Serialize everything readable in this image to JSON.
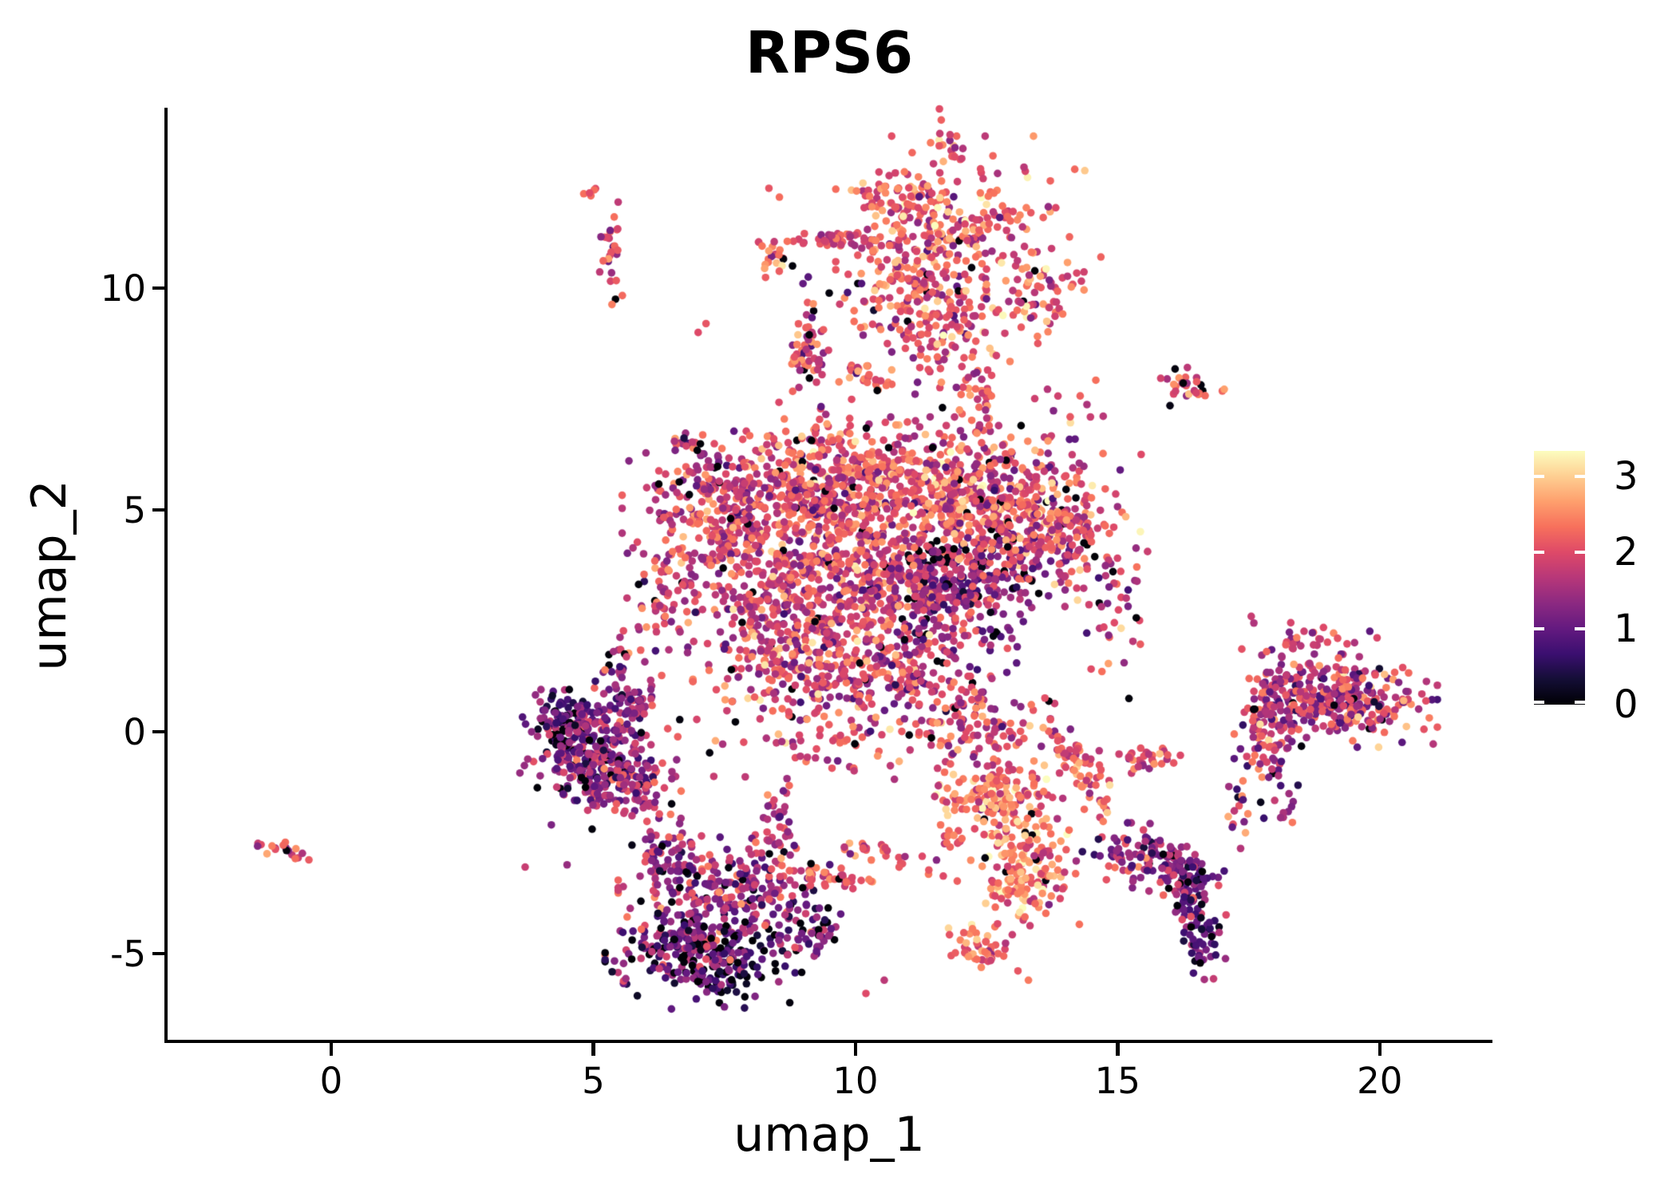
{
  "title": "RPS6",
  "axes": {
    "x_label": "umap_1",
    "y_label": "umap_2",
    "x_ticks": [
      0,
      5,
      10,
      15,
      20
    ],
    "y_ticks": [
      -5,
      0,
      5,
      10
    ]
  },
  "colorbar": {
    "ticks": [
      0,
      1,
      2,
      3
    ],
    "vmin": 0,
    "vmax": 3.33,
    "colormap": "magma",
    "stops": [
      "#000004",
      "#140e36",
      "#3b0f70",
      "#641a80",
      "#8c2981",
      "#b73779",
      "#de4968",
      "#f7705c",
      "#fe9f6d",
      "#fecf92",
      "#fcfdbf"
    ]
  },
  "chart_data": {
    "type": "scatter",
    "title": "RPS6",
    "xlabel": "umap_1",
    "ylabel": "umap_2",
    "xlim": [
      -3.12,
      22.12
    ],
    "ylim": [
      -6.98,
      14.03
    ],
    "x_ticks": [
      0,
      5,
      10,
      15,
      20
    ],
    "y_ticks": [
      -5,
      0,
      5,
      10
    ],
    "grid": false,
    "legend_position": "right",
    "color_scale": {
      "name": "magma",
      "vmin": 0,
      "vmax": 3.33,
      "label_ticks": [
        0,
        1,
        2,
        3
      ]
    },
    "seed": 42,
    "clusters": [
      {
        "cx": 12.0,
        "cy": 11.3,
        "sx": 0.95,
        "sy": 0.85,
        "rot": 0,
        "n": 260,
        "mean": 2.15,
        "sd": 0.5,
        "p0": 0.02
      },
      {
        "cx": 11.0,
        "cy": 10.05,
        "sx": 0.6,
        "sy": 0.5,
        "rot": 0,
        "n": 110,
        "mean": 2.1,
        "sd": 0.5,
        "p0": 0.02
      },
      {
        "cx": 11.75,
        "cy": 13.35,
        "sx": 0.13,
        "sy": 0.3,
        "rot": 15,
        "n": 16,
        "mean": 2.2,
        "sd": 0.4,
        "p0": 0
      },
      {
        "cx": 10.8,
        "cy": 12.2,
        "sx": 0.35,
        "sy": 0.25,
        "rot": 0,
        "n": 40,
        "mean": 2.2,
        "sd": 0.45,
        "p0": 0.02
      },
      {
        "cx": 9.75,
        "cy": 11.1,
        "sx": 0.42,
        "sy": 0.1,
        "rot": 0,
        "n": 40,
        "mean": 2.0,
        "sd": 0.4,
        "p0": 0
      },
      {
        "cx": 8.45,
        "cy": 10.65,
        "sx": 0.18,
        "sy": 0.18,
        "rot": 0,
        "n": 20,
        "mean": 2.3,
        "sd": 0.5,
        "p0": 0.05
      },
      {
        "cx": 13.55,
        "cy": 9.85,
        "sx": 0.3,
        "sy": 0.5,
        "rot": -25,
        "n": 60,
        "mean": 2.25,
        "sd": 0.5,
        "p0": 0.02
      },
      {
        "cx": 11.6,
        "cy": 9.0,
        "sx": 0.65,
        "sy": 0.45,
        "rot": 0,
        "n": 90,
        "mean": 2.1,
        "sd": 0.5,
        "p0": 0.03
      },
      {
        "cx": 9.05,
        "cy": 8.55,
        "sx": 0.22,
        "sy": 0.45,
        "rot": 0,
        "n": 55,
        "mean": 2.0,
        "sd": 0.5,
        "p0": 0.03
      },
      {
        "cx": 9.25,
        "cy": 6.95,
        "sx": 0.1,
        "sy": 0.3,
        "rot": 0,
        "n": 14,
        "mean": 2.0,
        "sd": 0.4,
        "p0": 0
      },
      {
        "cx": 10.1,
        "cy": 8.05,
        "sx": 0.25,
        "sy": 0.12,
        "rot": -30,
        "n": 20,
        "mean": 2.2,
        "sd": 0.4,
        "p0": 0
      },
      {
        "cx": 12.35,
        "cy": 7.7,
        "sx": 0.13,
        "sy": 0.32,
        "rot": 15,
        "n": 25,
        "mean": 2.0,
        "sd": 0.45,
        "p0": 0.04
      },
      {
        "cx": 11.0,
        "cy": 7.3,
        "sx": 0.75,
        "sy": 0.55,
        "rot": 0,
        "n": 32,
        "mean": 1.9,
        "sd": 0.55,
        "p0": 0.06
      },
      {
        "cx": 14.05,
        "cy": 6.9,
        "sx": 0.5,
        "sy": 0.45,
        "rot": 0,
        "n": 18,
        "mean": 2.0,
        "sd": 0.5,
        "p0": 0.05
      },
      {
        "cx": 16.35,
        "cy": 7.75,
        "sx": 0.32,
        "sy": 0.17,
        "rot": -20,
        "n": 30,
        "mean": 1.9,
        "sd": 0.55,
        "p0": 0.08
      },
      {
        "cx": 5.35,
        "cy": 10.75,
        "sx": 0.1,
        "sy": 0.55,
        "rot": 0,
        "n": 26,
        "mean": 2.0,
        "sd": 0.45,
        "p0": 0.04
      },
      {
        "cx": 4.95,
        "cy": 12.2,
        "sx": 0.07,
        "sy": 0.14,
        "rot": 0,
        "n": 5,
        "mean": 2.0,
        "sd": 0.3,
        "p0": 0
      },
      {
        "cx": 7.05,
        "cy": 6.25,
        "sx": 0.38,
        "sy": 0.1,
        "rot": -40,
        "n": 22,
        "mean": 1.85,
        "sd": 0.5,
        "p0": 0.1
      },
      {
        "cx": 7.3,
        "cy": 4.9,
        "sx": 0.7,
        "sy": 0.75,
        "rot": 0,
        "n": 280,
        "mean": 1.85,
        "sd": 0.5,
        "p0": 0.04
      },
      {
        "cx": 9.2,
        "cy": 5.3,
        "sx": 0.8,
        "sy": 0.7,
        "rot": 0,
        "n": 320,
        "mean": 2.05,
        "sd": 0.5,
        "p0": 0.03
      },
      {
        "cx": 11.2,
        "cy": 5.5,
        "sx": 0.9,
        "sy": 0.7,
        "rot": 0,
        "n": 380,
        "mean": 2.1,
        "sd": 0.5,
        "p0": 0.03
      },
      {
        "cx": 13.0,
        "cy": 4.9,
        "sx": 0.8,
        "sy": 0.8,
        "rot": 0,
        "n": 340,
        "mean": 2.0,
        "sd": 0.55,
        "p0": 0.05
      },
      {
        "cx": 12.0,
        "cy": 3.3,
        "sx": 0.8,
        "sy": 0.7,
        "rot": 0,
        "n": 320,
        "mean": 1.35,
        "sd": 0.5,
        "p0": 0.08
      },
      {
        "cx": 10.3,
        "cy": 3.4,
        "sx": 0.8,
        "sy": 0.7,
        "rot": 0,
        "n": 300,
        "mean": 1.95,
        "sd": 0.5,
        "p0": 0.04
      },
      {
        "cx": 8.4,
        "cy": 3.3,
        "sx": 0.7,
        "sy": 0.8,
        "rot": 0,
        "n": 260,
        "mean": 1.9,
        "sd": 0.5,
        "p0": 0.03
      },
      {
        "cx": 8.9,
        "cy": 1.5,
        "sx": 0.8,
        "sy": 0.7,
        "rot": 0,
        "n": 220,
        "mean": 1.95,
        "sd": 0.5,
        "p0": 0.03
      },
      {
        "cx": 10.9,
        "cy": 1.3,
        "sx": 0.8,
        "sy": 0.6,
        "rot": 0,
        "n": 200,
        "mean": 1.8,
        "sd": 0.55,
        "p0": 0.05
      },
      {
        "cx": 11.35,
        "cy": 4.05,
        "sx": 0.35,
        "sy": 0.1,
        "rot": 0,
        "n": 18,
        "mean": 0.15,
        "sd": 0.25,
        "p0": 0.5
      },
      {
        "cx": 13.9,
        "cy": 4.6,
        "sx": 0.45,
        "sy": 0.6,
        "rot": 0,
        "n": 110,
        "mean": 1.95,
        "sd": 0.5,
        "p0": 0.04
      },
      {
        "cx": 6.4,
        "cy": 3.2,
        "sx": 0.35,
        "sy": 0.6,
        "rot": 0,
        "n": 45,
        "mean": 1.8,
        "sd": 0.5,
        "p0": 0.05
      },
      {
        "cx": 6.2,
        "cy": 2.3,
        "sx": 0.25,
        "sy": 0.45,
        "rot": 0,
        "n": 20,
        "mean": 1.8,
        "sd": 0.5,
        "p0": 0.05
      },
      {
        "cx": 9.8,
        "cy": 0.0,
        "sx": 1.6,
        "sy": 0.55,
        "rot": 0,
        "n": 90,
        "mean": 1.95,
        "sd": 0.5,
        "p0": 0.04
      },
      {
        "cx": 12.3,
        "cy": -0.1,
        "sx": 0.6,
        "sy": 0.45,
        "rot": 0,
        "n": 80,
        "mean": 2.0,
        "sd": 0.5,
        "p0": 0.03
      },
      {
        "cx": 14.8,
        "cy": 3.0,
        "sx": 0.4,
        "sy": 0.9,
        "rot": 0,
        "n": 50,
        "mean": 1.9,
        "sd": 0.55,
        "p0": 0.06
      },
      {
        "cx": 4.85,
        "cy": -0.3,
        "sx": 0.5,
        "sy": 0.5,
        "rot": 0,
        "n": 260,
        "mean": 1.2,
        "sd": 0.5,
        "p0": 0.08
      },
      {
        "cx": 5.55,
        "cy": -1.25,
        "sx": 0.45,
        "sy": 0.4,
        "rot": 0,
        "n": 130,
        "mean": 1.6,
        "sd": 0.5,
        "p0": 0.03
      },
      {
        "cx": 4.35,
        "cy": 0.35,
        "sx": 0.28,
        "sy": 0.3,
        "rot": 0,
        "n": 55,
        "mean": 1.05,
        "sd": 0.45,
        "p0": 0.1
      },
      {
        "cx": 5.7,
        "cy": 0.7,
        "sx": 0.3,
        "sy": 0.35,
        "rot": 0,
        "n": 45,
        "mean": 1.5,
        "sd": 0.5,
        "p0": 0.04
      },
      {
        "cx": 5.45,
        "cy": 1.4,
        "sx": 0.15,
        "sy": 0.3,
        "rot": 0,
        "n": 14,
        "mean": 1.6,
        "sd": 0.45,
        "p0": 0.08
      },
      {
        "cx": -0.85,
        "cy": -2.65,
        "sx": 0.28,
        "sy": 0.1,
        "rot": -25,
        "n": 18,
        "mean": 1.7,
        "sd": 0.5,
        "p0": 0.05
      },
      {
        "cx": 7.1,
        "cy": -5.0,
        "sx": 0.75,
        "sy": 0.5,
        "rot": 0,
        "n": 300,
        "mean": 0.95,
        "sd": 0.6,
        "p0": 0.17
      },
      {
        "cx": 7.6,
        "cy": -3.6,
        "sx": 0.85,
        "sy": 0.5,
        "rot": 0,
        "n": 230,
        "mean": 1.5,
        "sd": 0.55,
        "p0": 0.06
      },
      {
        "cx": 6.4,
        "cy": -2.7,
        "sx": 0.3,
        "sy": 0.45,
        "rot": 0,
        "n": 60,
        "mean": 1.35,
        "sd": 0.5,
        "p0": 0.08
      },
      {
        "cx": 8.45,
        "cy": -2.1,
        "sx": 0.25,
        "sy": 0.5,
        "rot": 0,
        "n": 45,
        "mean": 1.7,
        "sd": 0.5,
        "p0": 0.04
      },
      {
        "cx": 9.2,
        "cy": -4.5,
        "sx": 0.35,
        "sy": 0.35,
        "rot": 0,
        "n": 45,
        "mean": 1.25,
        "sd": 0.5,
        "p0": 0.1
      },
      {
        "cx": 9.6,
        "cy": -3.3,
        "sx": 0.5,
        "sy": 0.1,
        "rot": -8,
        "n": 35,
        "mean": 2.1,
        "sd": 0.4,
        "p0": 0
      },
      {
        "cx": 10.8,
        "cy": -2.85,
        "sx": 0.5,
        "sy": 0.12,
        "rot": -20,
        "n": 30,
        "mean": 2.1,
        "sd": 0.4,
        "p0": 0
      },
      {
        "cx": 11.9,
        "cy": -2.5,
        "sx": 0.18,
        "sy": 0.12,
        "rot": 0,
        "n": 8,
        "mean": 2.0,
        "sd": 0.3,
        "p0": 0
      },
      {
        "cx": 12.7,
        "cy": -1.5,
        "sx": 0.55,
        "sy": 0.45,
        "rot": 0,
        "n": 170,
        "mean": 2.35,
        "sd": 0.5,
        "p0": 0.02
      },
      {
        "cx": 13.2,
        "cy": -3.3,
        "sx": 0.45,
        "sy": 0.6,
        "rot": 0,
        "n": 150,
        "mean": 2.45,
        "sd": 0.5,
        "p0": 0.02
      },
      {
        "cx": 12.35,
        "cy": -4.85,
        "sx": 0.3,
        "sy": 0.25,
        "rot": 0,
        "n": 45,
        "mean": 2.2,
        "sd": 0.45,
        "p0": 0.02
      },
      {
        "cx": 14.25,
        "cy": -0.75,
        "sx": 0.65,
        "sy": 0.16,
        "rot": -60,
        "n": 70,
        "mean": 2.2,
        "sd": 0.45,
        "p0": 0.02
      },
      {
        "cx": 15.45,
        "cy": -0.6,
        "sx": 0.32,
        "sy": 0.14,
        "rot": 0,
        "n": 35,
        "mean": 2.15,
        "sd": 0.45,
        "p0": 0
      },
      {
        "cx": 15.5,
        "cy": -2.8,
        "sx": 0.5,
        "sy": 0.3,
        "rot": -15,
        "n": 100,
        "mean": 1.35,
        "sd": 0.5,
        "p0": 0.05
      },
      {
        "cx": 16.35,
        "cy": -3.2,
        "sx": 0.3,
        "sy": 0.3,
        "rot": 0,
        "n": 55,
        "mean": 1.15,
        "sd": 0.5,
        "p0": 0.06
      },
      {
        "cx": 16.55,
        "cy": -4.35,
        "sx": 0.22,
        "sy": 0.5,
        "rot": 10,
        "n": 75,
        "mean": 1.0,
        "sd": 0.5,
        "p0": 0.08
      },
      {
        "cx": 17.3,
        "cy": -2.1,
        "sx": 0.2,
        "sy": 0.4,
        "rot": 0,
        "n": 14,
        "mean": 1.5,
        "sd": 0.5,
        "p0": 0.1
      },
      {
        "cx": 19.35,
        "cy": 0.7,
        "sx": 0.7,
        "sy": 0.42,
        "rot": 0,
        "n": 260,
        "mean": 1.7,
        "sd": 0.6,
        "p0": 0.04
      },
      {
        "cx": 18.25,
        "cy": 0.85,
        "sx": 0.42,
        "sy": 0.5,
        "rot": 0,
        "n": 110,
        "mean": 1.55,
        "sd": 0.55,
        "p0": 0.05
      },
      {
        "cx": 17.85,
        "cy": -0.35,
        "sx": 0.25,
        "sy": 0.45,
        "rot": 0,
        "n": 55,
        "mean": 1.6,
        "sd": 0.6,
        "p0": 0.04
      },
      {
        "cx": 18.1,
        "cy": -1.6,
        "sx": 0.2,
        "sy": 0.4,
        "rot": 0,
        "n": 14,
        "mean": 1.4,
        "sd": 0.5,
        "p0": 0.1
      },
      {
        "cx": 18.7,
        "cy": 2.1,
        "sx": 0.5,
        "sy": 0.25,
        "rot": 0,
        "n": 25,
        "mean": 2.0,
        "sd": 0.45,
        "p0": 0.03
      }
    ],
    "sparse_points": [
      [
        8.35,
        12.25,
        2.1
      ],
      [
        8.55,
        12.05,
        2.3
      ],
      [
        7.0,
        9.0,
        2.0
      ],
      [
        7.15,
        9.2,
        2.1
      ],
      [
        8.8,
        10.5,
        0.05
      ],
      [
        9.1,
        10.25,
        0.9
      ],
      [
        9.0,
        10.1,
        1.0
      ],
      [
        9.85,
        9.9,
        0.8
      ],
      [
        10.35,
        9.5,
        0.3
      ],
      [
        17.55,
        2.6,
        1.8
      ],
      [
        17.6,
        2.45,
        1.6
      ],
      [
        16.0,
        7.35,
        0.1
      ],
      [
        4.2,
        -2.1,
        1.2
      ],
      [
        3.7,
        -3.05,
        1.8
      ],
      [
        4.5,
        -3.0,
        1.4
      ],
      [
        10.2,
        -5.9,
        2.0
      ],
      [
        10.55,
        -5.6,
        1.7
      ],
      [
        13.3,
        -5.6,
        2.4
      ],
      [
        15.05,
        5.9,
        1.0
      ],
      [
        15.45,
        6.25,
        2.0
      ],
      [
        12.55,
        6.9,
        2.2
      ],
      [
        9.9,
        6.9,
        2.0
      ],
      [
        6.5,
        -0.9,
        1.5
      ],
      [
        14.2,
        -3.2,
        2.3
      ],
      [
        12.0,
        12.9,
        2.1
      ],
      [
        12.4,
        12.6,
        2.0
      ],
      [
        6.73,
        6.62,
        0.4
      ],
      [
        6.8,
        6.5,
        0.7
      ],
      [
        5.3,
        1.5,
        0.05
      ],
      [
        5.35,
        1.35,
        0.9
      ]
    ]
  }
}
